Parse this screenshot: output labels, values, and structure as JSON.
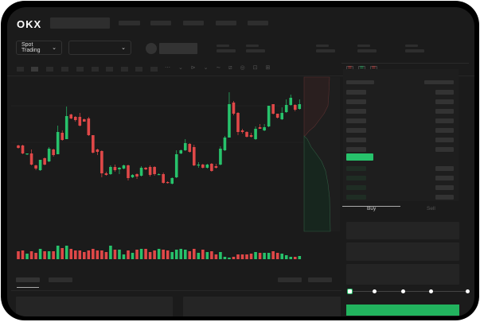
{
  "header": {
    "logo": "OKX"
  },
  "toolbar": {
    "market_selector": "Spot Trading"
  },
  "colors": {
    "up": "#27c26b",
    "down": "#e04848",
    "background": "#1b1b1b",
    "accent": "#22b35e"
  },
  "chart_data": {
    "type": "candlestick",
    "candles": [
      [
        118,
        119,
        114,
        115
      ],
      [
        118,
        119,
        107,
        108
      ],
      [
        107,
        108,
        106,
        108
      ],
      [
        108,
        113,
        93,
        94
      ],
      [
        93,
        94,
        87,
        89
      ],
      [
        87,
        100,
        86,
        100
      ],
      [
        102,
        103,
        93,
        94
      ],
      [
        98,
        116,
        97,
        114
      ],
      [
        113,
        114,
        104,
        106
      ],
      [
        107,
        143,
        107,
        135
      ],
      [
        134,
        137,
        124,
        125
      ],
      [
        126,
        167,
        126,
        155
      ],
      [
        157,
        158,
        151,
        152
      ],
      [
        154,
        155,
        148,
        150
      ],
      [
        154,
        159,
        142,
        143
      ],
      [
        151,
        152,
        148,
        148
      ],
      [
        152,
        154,
        130,
        131
      ],
      [
        131,
        131,
        108,
        109
      ],
      [
        113,
        114,
        106,
        110
      ],
      [
        111,
        112,
        78,
        83
      ],
      [
        83,
        85,
        80,
        81
      ],
      [
        82,
        93,
        81,
        91
      ],
      [
        91,
        94,
        85,
        87
      ],
      [
        88,
        91,
        82,
        90
      ],
      [
        89,
        94,
        88,
        93
      ],
      [
        93,
        94,
        74,
        77
      ],
      [
        78,
        82,
        77,
        81
      ],
      [
        82,
        83,
        76,
        79
      ],
      [
        80,
        92,
        79,
        90
      ],
      [
        90,
        91,
        87,
        88
      ],
      [
        91,
        93,
        79,
        81
      ],
      [
        91,
        92,
        80,
        82
      ],
      [
        82,
        83,
        81,
        82
      ],
      [
        82,
        84,
        70,
        71
      ],
      [
        72,
        73,
        70,
        71
      ],
      [
        70,
        78,
        69,
        77
      ],
      [
        78,
        112,
        77,
        107
      ],
      [
        108,
        113,
        107,
        112
      ],
      [
        112,
        126,
        111,
        121
      ],
      [
        120,
        121,
        109,
        110
      ],
      [
        116,
        119,
        92,
        93
      ],
      [
        93,
        97,
        90,
        94
      ],
      [
        94,
        95,
        89,
        90
      ],
      [
        90,
        95,
        89,
        94
      ],
      [
        95,
        96,
        85,
        86
      ],
      [
        92,
        95,
        89,
        90
      ],
      [
        94,
        117,
        93,
        114
      ],
      [
        112,
        130,
        111,
        128
      ],
      [
        128,
        185,
        128,
        170
      ],
      [
        172,
        174,
        156,
        158
      ],
      [
        159,
        160,
        131,
        135
      ],
      [
        137,
        139,
        133,
        135
      ],
      [
        135,
        136,
        128,
        129
      ],
      [
        131,
        134,
        128,
        129
      ],
      [
        126,
        142,
        125,
        139
      ],
      [
        141,
        145,
        139,
        139
      ],
      [
        137,
        145,
        136,
        141
      ],
      [
        142,
        168,
        141,
        168
      ],
      [
        170,
        170,
        157,
        158
      ],
      [
        158,
        158,
        152,
        153
      ],
      [
        151,
        166,
        150,
        159
      ],
      [
        160,
        176,
        159,
        169
      ],
      [
        169,
        182,
        168,
        178
      ],
      [
        169,
        170,
        161,
        163
      ],
      [
        164,
        176,
        163,
        170
      ]
    ],
    "volumes": [
      10,
      11,
      7,
      10,
      8,
      13,
      10,
      10,
      10,
      17,
      14,
      17,
      13,
      11,
      11,
      9,
      11,
      13,
      11,
      11,
      9,
      17,
      12,
      12,
      6,
      11,
      8,
      12,
      13,
      13,
      9,
      11,
      13,
      12,
      11,
      9,
      12,
      13,
      12,
      10,
      13,
      8,
      12,
      9,
      10,
      6,
      9,
      3,
      2,
      3,
      6,
      6,
      6,
      7,
      9,
      8,
      8,
      8,
      10,
      8,
      7,
      5,
      3,
      3,
      4
    ]
  },
  "trade": {
    "tabs": [
      "Buy",
      "Sell"
    ],
    "active_tab": "Buy",
    "slider_percent": 0
  }
}
